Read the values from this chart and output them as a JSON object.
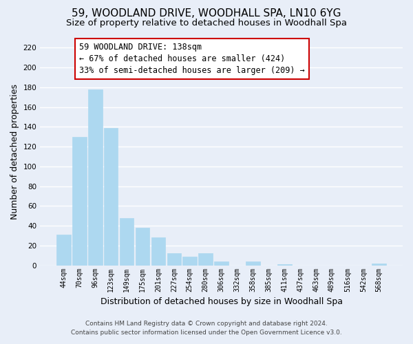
{
  "title": "59, WOODLAND DRIVE, WOODHALL SPA, LN10 6YG",
  "subtitle": "Size of property relative to detached houses in Woodhall Spa",
  "xlabel": "Distribution of detached houses by size in Woodhall Spa",
  "ylabel": "Number of detached properties",
  "bar_labels": [
    "44sqm",
    "70sqm",
    "96sqm",
    "123sqm",
    "149sqm",
    "175sqm",
    "201sqm",
    "227sqm",
    "254sqm",
    "280sqm",
    "306sqm",
    "332sqm",
    "358sqm",
    "385sqm",
    "411sqm",
    "437sqm",
    "463sqm",
    "489sqm",
    "516sqm",
    "542sqm",
    "568sqm"
  ],
  "bar_values": [
    31,
    130,
    178,
    139,
    48,
    38,
    28,
    12,
    9,
    12,
    4,
    0,
    4,
    0,
    1,
    0,
    0,
    0,
    0,
    0,
    2
  ],
  "bar_color": "#add8f0",
  "bar_edge_color": "#add8f0",
  "background_color": "#e8eef8",
  "grid_color": "#ffffff",
  "ylim": [
    0,
    230
  ],
  "yticks": [
    0,
    20,
    40,
    60,
    80,
    100,
    120,
    140,
    160,
    180,
    200,
    220
  ],
  "annotation_line1": "59 WOODLAND DRIVE: 138sqm",
  "annotation_line2": "← 67% of detached houses are smaller (424)",
  "annotation_line3": "33% of semi-detached houses are larger (209) →",
  "annotation_box_color": "#ffffff",
  "annotation_box_edge_color": "#cc0000",
  "footer_line1": "Contains HM Land Registry data © Crown copyright and database right 2024.",
  "footer_line2": "Contains public sector information licensed under the Open Government Licence v3.0.",
  "title_fontsize": 11,
  "subtitle_fontsize": 9.5,
  "xlabel_fontsize": 9,
  "ylabel_fontsize": 9,
  "annotation_fontsize": 8.5,
  "footer_fontsize": 6.5
}
